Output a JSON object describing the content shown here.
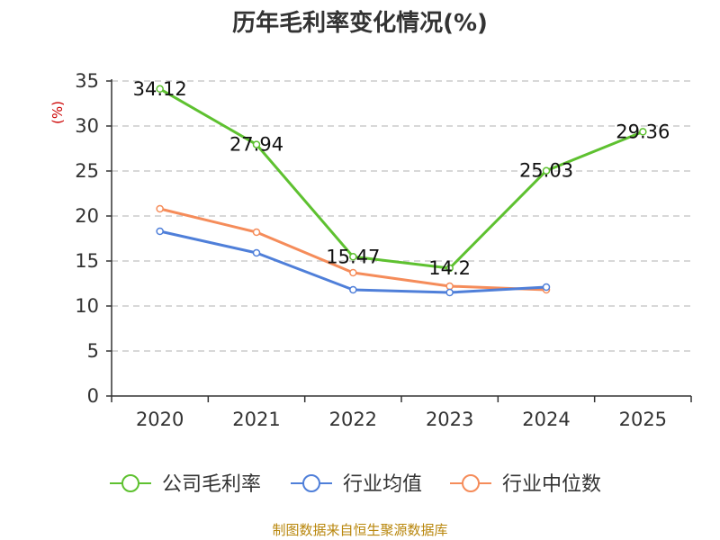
{
  "chart_data": {
    "type": "line",
    "title": "历年毛利率变化情况(%)",
    "ylabel": "(%)",
    "xlabel": "",
    "categories": [
      "2020",
      "2021",
      "2022",
      "2023",
      "2024",
      "2025"
    ],
    "yticks": [
      "0",
      "5",
      "10",
      "15",
      "20",
      "25",
      "30",
      "35"
    ],
    "ylim": [
      0,
      35
    ],
    "grid": true,
    "legend_position": "bottom",
    "series": [
      {
        "name": "公司毛利率",
        "color": "#5ec130",
        "values": [
          34.12,
          27.94,
          15.47,
          14.2,
          25.03,
          29.36
        ],
        "labels": [
          "34.12",
          "27.94",
          "15.47",
          "14.2",
          "25.03",
          "29.36"
        ]
      },
      {
        "name": "行业均值",
        "color": "#4f7fd9",
        "values": [
          18.3,
          15.9,
          11.8,
          11.5,
          12.1,
          null
        ]
      },
      {
        "name": "行业中位数",
        "color": "#f58c5a",
        "values": [
          20.8,
          18.2,
          13.7,
          12.2,
          11.8,
          null
        ]
      }
    ]
  },
  "colors": {
    "axis": "#333333",
    "grid": "#cccccc",
    "ylabel": "#cc0000",
    "source": "#b8860b"
  },
  "source": "制图数据来自恒生聚源数据库"
}
